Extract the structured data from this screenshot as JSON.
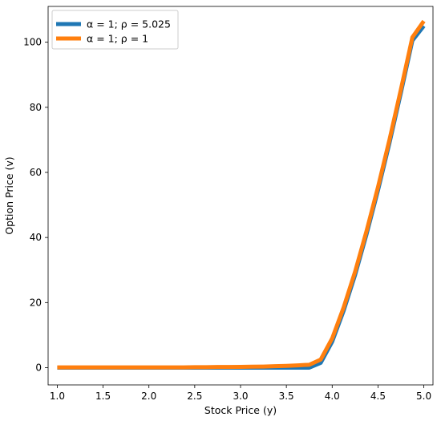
{
  "chart_data": {
    "type": "line",
    "title": "",
    "xlabel": "Stock Price (y)",
    "ylabel": "Option Price (v)",
    "xlim": [
      0.9,
      5.1
    ],
    "ylim": [
      -5.3,
      111
    ],
    "xticks": [
      1.0,
      1.5,
      2.0,
      2.5,
      3.0,
      3.5,
      4.0,
      4.5,
      5.0
    ],
    "xtick_labels": [
      "1.0",
      "1.5",
      "2.0",
      "2.5",
      "3.0",
      "3.5",
      "4.0",
      "4.5",
      "5.0"
    ],
    "yticks": [
      0,
      20,
      40,
      60,
      80,
      100
    ],
    "ytick_labels": [
      "0",
      "20",
      "40",
      "60",
      "80",
      "100"
    ],
    "grid": false,
    "legend_position": "top-left",
    "series": [
      {
        "name": "α = 1; ρ = 5.025",
        "color": "#1f77b4",
        "x": [
          1.0,
          1.125,
          1.25,
          1.375,
          1.5,
          1.625,
          1.75,
          1.875,
          2.0,
          2.125,
          2.25,
          2.375,
          2.5,
          2.625,
          2.75,
          2.875,
          3.0,
          3.125,
          3.25,
          3.375,
          3.5,
          3.625,
          3.75,
          3.875,
          4.0,
          4.125,
          4.25,
          4.375,
          4.5,
          4.625,
          4.75,
          4.875,
          5.0
        ],
        "y": [
          0,
          0,
          0,
          0,
          0,
          0,
          0,
          0,
          0,
          0,
          0,
          0,
          0,
          0,
          0,
          0,
          0,
          0,
          0,
          0,
          0,
          0,
          0,
          1.5,
          8.0,
          17.5,
          28.5,
          41.0,
          54.5,
          69.0,
          84.5,
          100.5,
          105.0
        ]
      },
      {
        "name": "α = 1; ρ = 1",
        "color": "#ff7f0e",
        "x": [
          1.0,
          1.125,
          1.25,
          1.375,
          1.5,
          1.625,
          1.75,
          1.875,
          2.0,
          2.125,
          2.25,
          2.375,
          2.5,
          2.625,
          2.75,
          2.875,
          3.0,
          3.125,
          3.25,
          3.375,
          3.5,
          3.625,
          3.75,
          3.875,
          4.0,
          4.125,
          4.25,
          4.375,
          4.5,
          4.625,
          4.75,
          4.875,
          5.0
        ],
        "y": [
          0.1,
          0.1,
          0.1,
          0.1,
          0.1,
          0.1,
          0.1,
          0.1,
          0.1,
          0.1,
          0.1,
          0.1,
          0.15,
          0.15,
          0.2,
          0.2,
          0.25,
          0.3,
          0.35,
          0.45,
          0.55,
          0.7,
          0.9,
          2.5,
          9.0,
          18.5,
          29.5,
          42.0,
          55.5,
          70.0,
          85.5,
          101.5,
          106.5
        ]
      }
    ]
  }
}
